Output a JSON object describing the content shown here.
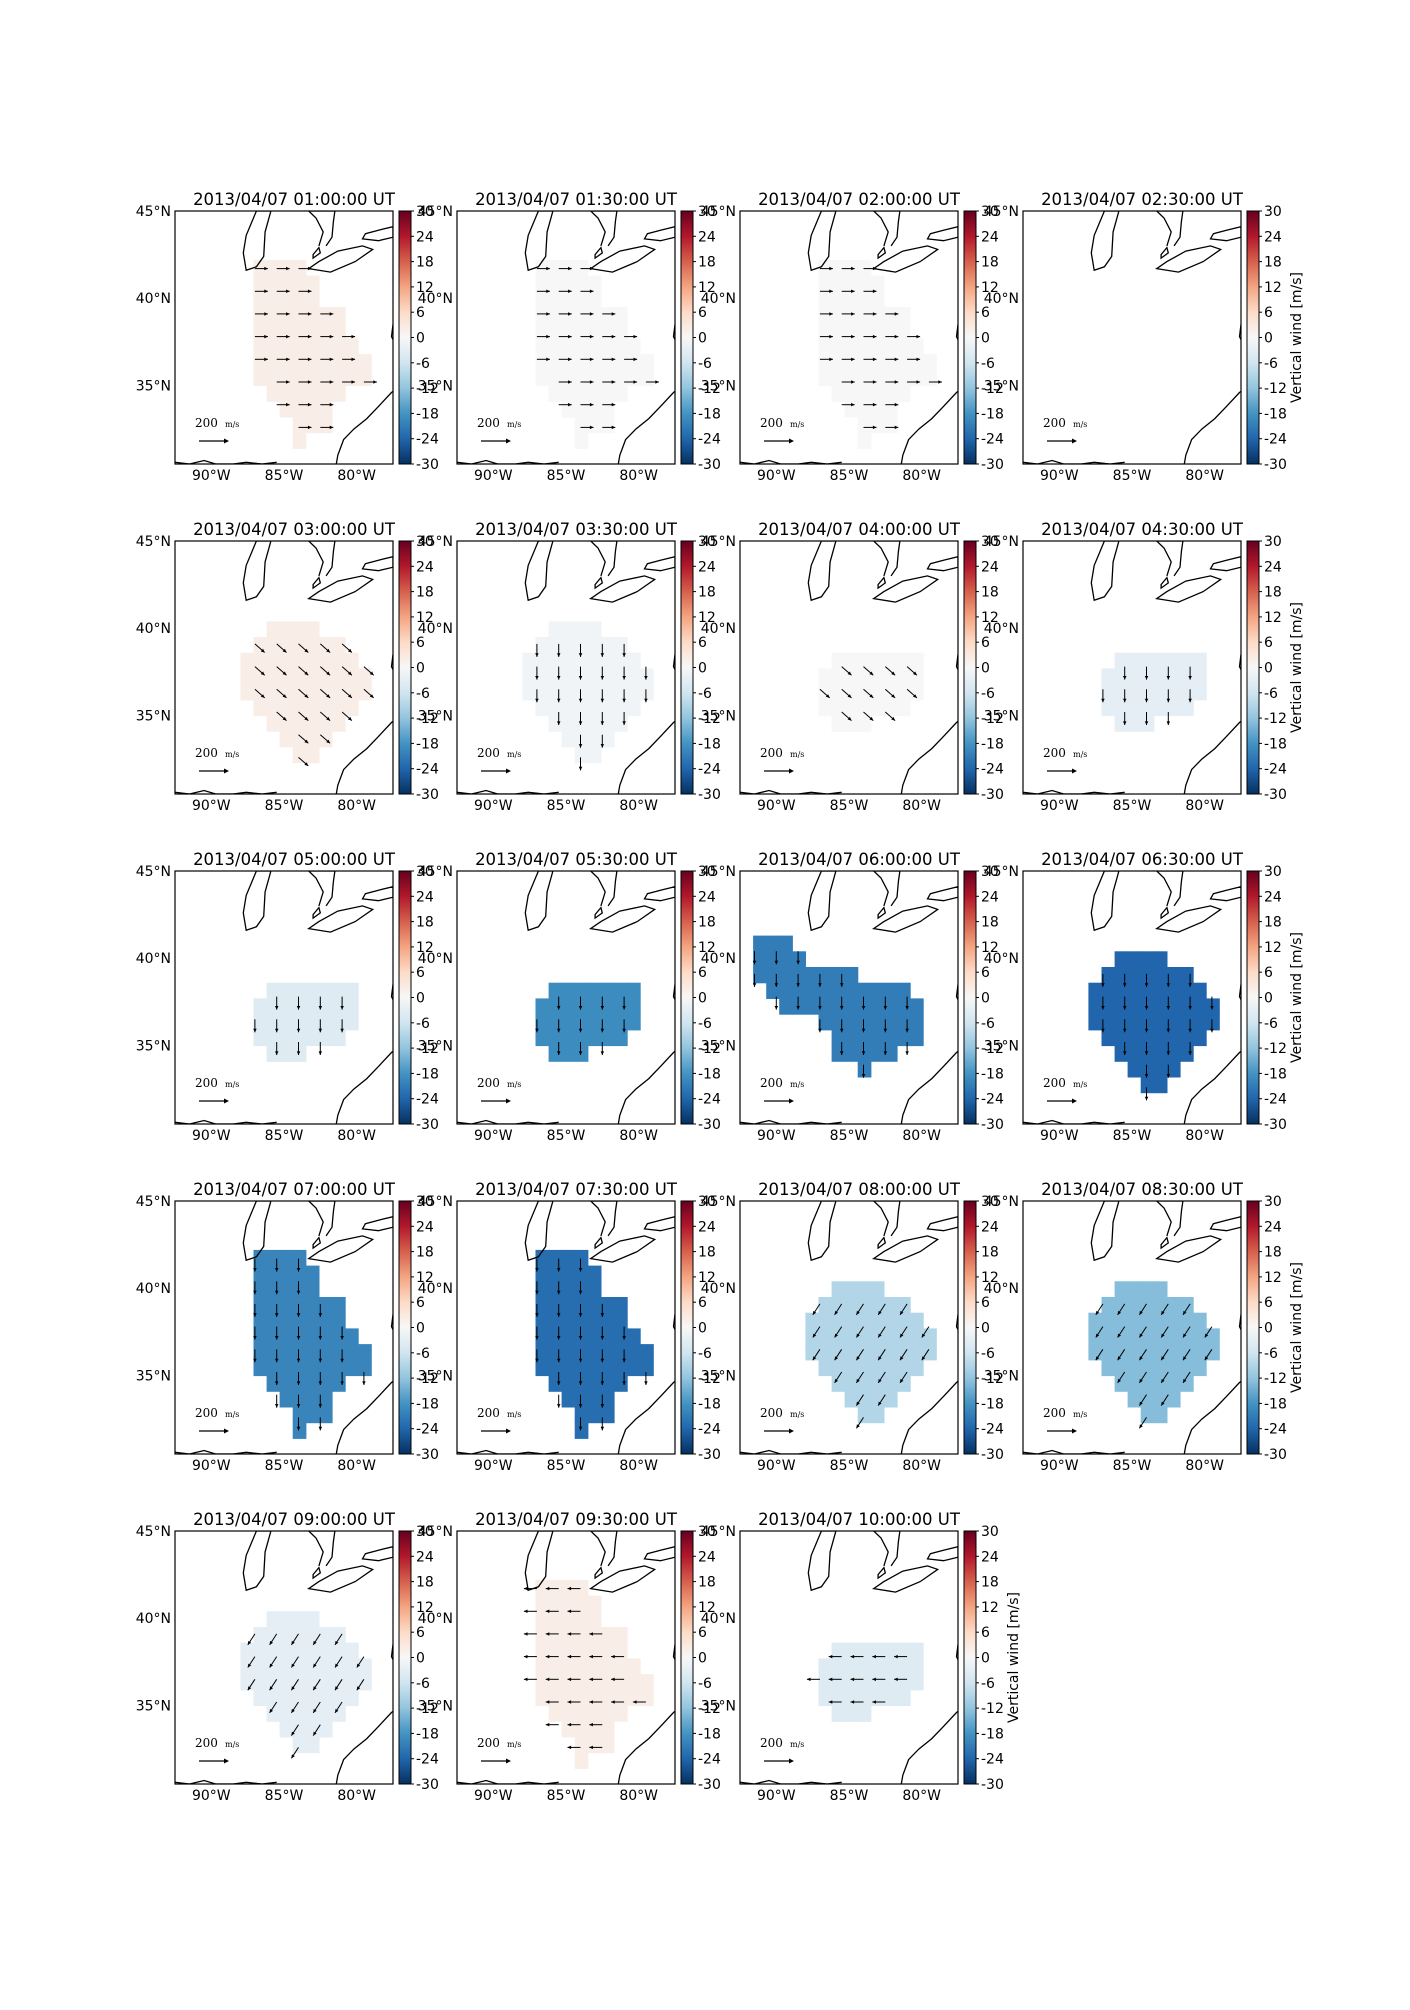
{
  "colorbar": {
    "ticks": [
      "30",
      "24",
      "18",
      "12",
      "6",
      "0",
      "-6",
      "-12",
      "-18",
      "-24",
      "-30"
    ],
    "label": "Vertical wind [m/s]",
    "colormap": "RdBu_r",
    "colors": [
      "#67001f",
      "#b2182b",
      "#d6604d",
      "#f4a582",
      "#fddbc7",
      "#f7f7f7",
      "#d1e5f0",
      "#92c5de",
      "#4393c3",
      "#2166ac",
      "#053061"
    ]
  },
  "map_axes": {
    "lat_labels": [
      "45°N",
      "40°N",
      "35°N"
    ],
    "lon_labels": [
      "90°W",
      "85°W",
      "80°W"
    ],
    "extent": {
      "lon": [
        -92.5,
        -77.5
      ],
      "lat": [
        30.5,
        45.0
      ]
    }
  },
  "reference_arrow": {
    "label": "200 m/s",
    "value_ms": 200
  },
  "panels": [
    {
      "title": "2013/04/07 01:00:00 UT",
      "vz": 2,
      "dir": "E",
      "shape": "tall",
      "show_label": false
    },
    {
      "title": "2013/04/07 01:30:00 UT",
      "vz": 0,
      "dir": "E",
      "shape": "tall",
      "show_label": false
    },
    {
      "title": "2013/04/07 02:00:00 UT",
      "vz": 0,
      "dir": "E",
      "shape": "tall",
      "show_label": false
    },
    {
      "title": "2013/04/07 02:30:00 UT",
      "vz": null,
      "dir": null,
      "shape": "none",
      "show_label": true
    },
    {
      "title": "2013/04/07 03:00:00 UT",
      "vz": 2,
      "dir": "SE",
      "shape": "mid",
      "show_label": false
    },
    {
      "title": "2013/04/07 03:30:00 UT",
      "vz": -1,
      "dir": "S",
      "shape": "mid",
      "show_label": false
    },
    {
      "title": "2013/04/07 04:00:00 UT",
      "vz": 0,
      "dir": "SE",
      "shape": "small",
      "show_label": false
    },
    {
      "title": "2013/04/07 04:30:00 UT",
      "vz": -3,
      "dir": "S",
      "shape": "small",
      "show_label": true
    },
    {
      "title": "2013/04/07 05:00:00 UT",
      "vz": -4,
      "dir": "S",
      "shape": "small",
      "show_label": false
    },
    {
      "title": "2013/04/07 05:30:00 UT",
      "vz": -19,
      "dir": "S",
      "shape": "small",
      "show_label": false
    },
    {
      "title": "2013/04/07 06:00:00 UT",
      "vz": -21,
      "dir": "S",
      "shape": "twin",
      "show_label": false
    },
    {
      "title": "2013/04/07 06:30:00 UT",
      "vz": -24,
      "dir": "S",
      "shape": "mid",
      "show_label": true
    },
    {
      "title": "2013/04/07 07:00:00 UT",
      "vz": -20,
      "dir": "S",
      "shape": "tall",
      "show_label": false
    },
    {
      "title": "2013/04/07 07:30:00 UT",
      "vz": -23,
      "dir": "S",
      "shape": "tall",
      "show_label": false
    },
    {
      "title": "2013/04/07 08:00:00 UT",
      "vz": -9,
      "dir": "SW",
      "shape": "mid",
      "show_label": false
    },
    {
      "title": "2013/04/07 08:30:00 UT",
      "vz": -13,
      "dir": "SW",
      "shape": "mid",
      "show_label": true
    },
    {
      "title": "2013/04/07 09:00:00 UT",
      "vz": -3,
      "dir": "SW",
      "shape": "mid",
      "show_label": false
    },
    {
      "title": "2013/04/07 09:30:00 UT",
      "vz": 2,
      "dir": "W",
      "shape": "tall",
      "show_label": false
    },
    {
      "title": "2013/04/07 10:00:00 UT",
      "vz": -4,
      "dir": "W",
      "shape": "small",
      "show_label": true
    }
  ]
}
